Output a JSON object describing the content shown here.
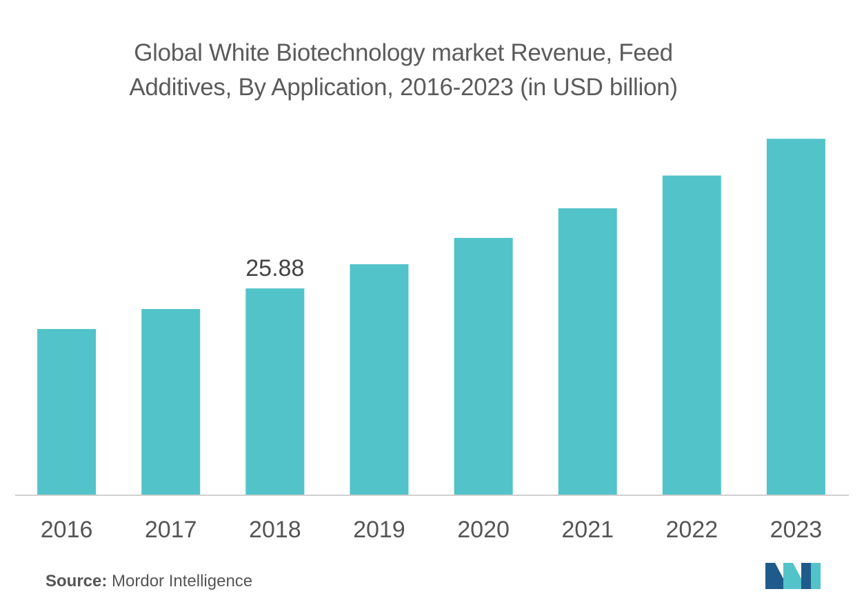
{
  "chart_data": {
    "type": "bar",
    "title_line1": "Global White Biotechnology market Revenue, Feed",
    "title_line2": "Additives, By Application, 2016-2023 (in USD billion)",
    "categories": [
      "2016",
      "2017",
      "2018",
      "2019",
      "2020",
      "2021",
      "2022",
      "2023"
    ],
    "values": [
      20.8,
      23.3,
      25.88,
      28.9,
      32.2,
      35.9,
      40.0,
      44.6
    ],
    "data_labels": [
      null,
      null,
      "25.88",
      null,
      null,
      null,
      null,
      null
    ],
    "xlabel": "",
    "ylabel": "",
    "ylim": [
      0,
      46
    ],
    "grid": false,
    "bar_color": "#52c3c9",
    "axis_color": "#d0d0d0"
  },
  "footer": {
    "source_label": "Source:",
    "source_value": " Mordor Intelligence"
  },
  "logo": {
    "name": "mordor-intelligence-logo",
    "color_dark": "#1f5b8a",
    "color_light": "#52c3c9"
  }
}
